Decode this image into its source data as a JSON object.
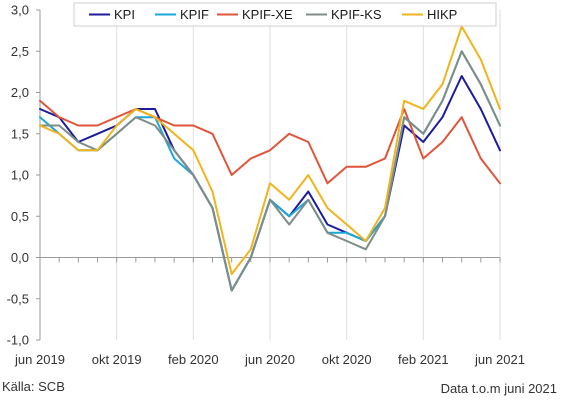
{
  "chart_data": {
    "type": "line",
    "x": [
      "2019-06",
      "2019-07",
      "2019-08",
      "2019-09",
      "2019-10",
      "2019-11",
      "2019-12",
      "2020-01",
      "2020-02",
      "2020-03",
      "2020-04",
      "2020-05",
      "2020-06",
      "2020-07",
      "2020-08",
      "2020-09",
      "2020-10",
      "2020-11",
      "2020-12",
      "2021-01",
      "2021-02",
      "2021-03",
      "2021-04",
      "2021-05",
      "2021-06"
    ],
    "x_tick_labels": [
      {
        "x": "2019-06",
        "label": "jun 2019"
      },
      {
        "x": "2019-10",
        "label": "okt 2019"
      },
      {
        "x": "2020-02",
        "label": "feb 2020"
      },
      {
        "x": "2020-06",
        "label": "jun 2020"
      },
      {
        "x": "2020-10",
        "label": "okt 2020"
      },
      {
        "x": "2021-02",
        "label": "feb 2021"
      },
      {
        "x": "2021-06",
        "label": "jun 2021"
      }
    ],
    "y_tick_labels": [
      "3,0",
      "2,5",
      "2,0",
      "1,5",
      "1,0",
      "0,5",
      "0,0",
      "-0,5",
      "-1,0"
    ],
    "y_ticks": [
      3.0,
      2.5,
      2.0,
      1.5,
      1.0,
      0.5,
      0.0,
      -0.5,
      -1.0
    ],
    "ylim": [
      -1.0,
      3.0
    ],
    "grid": "vertical",
    "legend_position": "top",
    "series": [
      {
        "name": "KPI",
        "color": "#1c1c9c",
        "values": [
          1.8,
          1.7,
          1.4,
          1.5,
          1.6,
          1.8,
          1.8,
          1.3,
          1.0,
          0.6,
          -0.4,
          0.0,
          0.7,
          0.5,
          0.8,
          0.4,
          0.3,
          0.2,
          0.5,
          1.6,
          1.4,
          1.7,
          2.2,
          1.8,
          1.3
        ]
      },
      {
        "name": "KPIF",
        "color": "#19a8d8",
        "values": [
          1.7,
          1.5,
          1.3,
          1.3,
          1.5,
          1.7,
          1.7,
          1.2,
          1.0,
          0.6,
          -0.4,
          0.0,
          0.7,
          0.5,
          0.7,
          0.3,
          0.3,
          0.2,
          0.5,
          1.7,
          1.5,
          1.9,
          2.5,
          2.1,
          1.6
        ]
      },
      {
        "name": "KPIF-XE",
        "color": "#e0553a",
        "values": [
          1.9,
          1.7,
          1.6,
          1.6,
          1.7,
          1.8,
          1.7,
          1.6,
          1.6,
          1.5,
          1.0,
          1.2,
          1.3,
          1.5,
          1.4,
          0.9,
          1.1,
          1.1,
          1.2,
          1.8,
          1.2,
          1.4,
          1.7,
          1.2,
          0.9
        ]
      },
      {
        "name": "KPIF-KS",
        "color": "#7f8c87",
        "values": [
          1.6,
          1.6,
          1.4,
          1.3,
          1.5,
          1.7,
          1.6,
          1.3,
          1.0,
          0.6,
          -0.4,
          0.0,
          0.7,
          0.4,
          0.7,
          0.3,
          0.2,
          0.1,
          0.5,
          1.7,
          1.5,
          1.9,
          2.5,
          2.1,
          1.6
        ]
      },
      {
        "name": "HIKP",
        "color": "#f0b41c",
        "values": [
          1.6,
          1.5,
          1.3,
          1.3,
          1.6,
          1.8,
          1.7,
          1.5,
          1.3,
          0.8,
          -0.2,
          0.1,
          0.9,
          0.7,
          1.0,
          0.6,
          0.4,
          0.2,
          0.6,
          1.9,
          1.8,
          2.1,
          2.8,
          2.4,
          1.8
        ]
      }
    ]
  },
  "footer": {
    "source": "Källa: SCB",
    "note": "Data t.o.m juni 2021"
  }
}
